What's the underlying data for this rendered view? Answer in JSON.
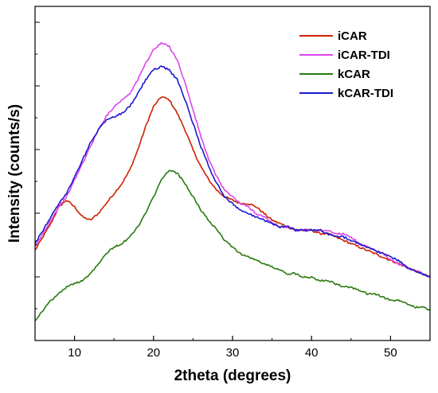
{
  "chart_data": {
    "type": "line",
    "title": "",
    "xlabel": "2theta (degrees)",
    "ylabel": "Intensity (counts/s)",
    "xlim": [
      5,
      55
    ],
    "ylim": [
      0,
      1
    ],
    "x_ticks": [
      "10",
      "20",
      "30",
      "40",
      "50"
    ],
    "y_tick_labels_shown": false,
    "grid": false,
    "legend_position": "top-right",
    "series": [
      {
        "name": "iCAR",
        "color": "#cc2200",
        "points": [
          [
            5,
            0.27
          ],
          [
            6,
            0.31
          ],
          [
            7,
            0.35
          ],
          [
            8,
            0.4
          ],
          [
            9,
            0.42
          ],
          [
            10,
            0.4
          ],
          [
            11,
            0.37
          ],
          [
            12,
            0.36
          ],
          [
            13,
            0.38
          ],
          [
            14,
            0.41
          ],
          [
            15,
            0.44
          ],
          [
            16,
            0.47
          ],
          [
            17,
            0.51
          ],
          [
            18,
            0.57
          ],
          [
            19,
            0.64
          ],
          [
            20,
            0.7
          ],
          [
            21,
            0.73
          ],
          [
            22,
            0.72
          ],
          [
            23,
            0.68
          ],
          [
            24,
            0.63
          ],
          [
            25,
            0.57
          ],
          [
            26,
            0.52
          ],
          [
            27,
            0.48
          ],
          [
            28,
            0.45
          ],
          [
            29,
            0.43
          ],
          [
            30,
            0.42
          ],
          [
            31,
            0.41
          ],
          [
            32,
            0.41
          ],
          [
            33,
            0.4
          ],
          [
            34,
            0.38
          ],
          [
            35,
            0.36
          ],
          [
            36,
            0.35
          ],
          [
            37,
            0.34
          ],
          [
            38,
            0.33
          ],
          [
            39,
            0.33
          ],
          [
            40,
            0.33
          ],
          [
            41,
            0.32
          ],
          [
            42,
            0.32
          ],
          [
            43,
            0.31
          ],
          [
            44,
            0.3
          ],
          [
            45,
            0.29
          ],
          [
            46,
            0.28
          ],
          [
            47,
            0.27
          ],
          [
            48,
            0.26
          ],
          [
            49,
            0.25
          ],
          [
            50,
            0.24
          ],
          [
            51,
            0.23
          ],
          [
            52,
            0.22
          ],
          [
            53,
            0.21
          ],
          [
            54,
            0.2
          ],
          [
            55,
            0.19
          ]
        ]
      },
      {
        "name": "iCAR-TDI",
        "color": "#dd44ee",
        "points": [
          [
            5,
            0.28
          ],
          [
            6,
            0.32
          ],
          [
            7,
            0.36
          ],
          [
            8,
            0.4
          ],
          [
            9,
            0.43
          ],
          [
            10,
            0.48
          ],
          [
            11,
            0.53
          ],
          [
            12,
            0.58
          ],
          [
            13,
            0.63
          ],
          [
            14,
            0.67
          ],
          [
            15,
            0.7
          ],
          [
            16,
            0.72
          ],
          [
            17,
            0.74
          ],
          [
            18,
            0.78
          ],
          [
            19,
            0.83
          ],
          [
            20,
            0.87
          ],
          [
            21,
            0.89
          ],
          [
            22,
            0.88
          ],
          [
            23,
            0.84
          ],
          [
            24,
            0.77
          ],
          [
            25,
            0.69
          ],
          [
            26,
            0.61
          ],
          [
            27,
            0.54
          ],
          [
            28,
            0.49
          ],
          [
            29,
            0.45
          ],
          [
            30,
            0.43
          ],
          [
            31,
            0.41
          ],
          [
            32,
            0.4
          ],
          [
            33,
            0.38
          ],
          [
            34,
            0.37
          ],
          [
            35,
            0.35
          ],
          [
            36,
            0.34
          ],
          [
            37,
            0.34
          ],
          [
            38,
            0.33
          ],
          [
            39,
            0.33
          ],
          [
            40,
            0.33
          ],
          [
            41,
            0.33
          ],
          [
            42,
            0.33
          ],
          [
            43,
            0.32
          ],
          [
            44,
            0.32
          ],
          [
            45,
            0.31
          ],
          [
            46,
            0.29
          ],
          [
            47,
            0.28
          ],
          [
            48,
            0.27
          ],
          [
            49,
            0.26
          ],
          [
            50,
            0.24
          ],
          [
            51,
            0.23
          ],
          [
            52,
            0.22
          ],
          [
            53,
            0.21
          ],
          [
            54,
            0.2
          ],
          [
            55,
            0.19
          ]
        ]
      },
      {
        "name": "kCAR",
        "color": "#2a7a10",
        "points": [
          [
            5,
            0.06
          ],
          [
            6,
            0.09
          ],
          [
            7,
            0.12
          ],
          [
            8,
            0.14
          ],
          [
            9,
            0.16
          ],
          [
            10,
            0.17
          ],
          [
            11,
            0.18
          ],
          [
            12,
            0.2
          ],
          [
            13,
            0.23
          ],
          [
            14,
            0.26
          ],
          [
            15,
            0.28
          ],
          [
            16,
            0.29
          ],
          [
            17,
            0.31
          ],
          [
            18,
            0.34
          ],
          [
            19,
            0.38
          ],
          [
            20,
            0.43
          ],
          [
            21,
            0.48
          ],
          [
            22,
            0.51
          ],
          [
            23,
            0.5
          ],
          [
            24,
            0.47
          ],
          [
            25,
            0.43
          ],
          [
            26,
            0.39
          ],
          [
            27,
            0.36
          ],
          [
            28,
            0.33
          ],
          [
            29,
            0.3
          ],
          [
            30,
            0.28
          ],
          [
            31,
            0.26
          ],
          [
            32,
            0.25
          ],
          [
            33,
            0.24
          ],
          [
            34,
            0.23
          ],
          [
            35,
            0.22
          ],
          [
            36,
            0.21
          ],
          [
            37,
            0.2
          ],
          [
            38,
            0.2
          ],
          [
            39,
            0.19
          ],
          [
            40,
            0.19
          ],
          [
            41,
            0.18
          ],
          [
            42,
            0.18
          ],
          [
            43,
            0.17
          ],
          [
            44,
            0.16
          ],
          [
            45,
            0.16
          ],
          [
            46,
            0.15
          ],
          [
            47,
            0.14
          ],
          [
            48,
            0.14
          ],
          [
            49,
            0.13
          ],
          [
            50,
            0.12
          ],
          [
            51,
            0.12
          ],
          [
            52,
            0.11
          ],
          [
            53,
            0.1
          ],
          [
            54,
            0.1
          ],
          [
            55,
            0.09
          ]
        ]
      },
      {
        "name": "kCAR-TDI",
        "color": "#1a1acc",
        "points": [
          [
            5,
            0.29
          ],
          [
            6,
            0.33
          ],
          [
            7,
            0.37
          ],
          [
            8,
            0.41
          ],
          [
            9,
            0.44
          ],
          [
            10,
            0.49
          ],
          [
            11,
            0.54
          ],
          [
            12,
            0.59
          ],
          [
            13,
            0.63
          ],
          [
            14,
            0.66
          ],
          [
            15,
            0.67
          ],
          [
            16,
            0.68
          ],
          [
            17,
            0.7
          ],
          [
            18,
            0.74
          ],
          [
            19,
            0.78
          ],
          [
            20,
            0.81
          ],
          [
            21,
            0.82
          ],
          [
            22,
            0.81
          ],
          [
            23,
            0.78
          ],
          [
            24,
            0.72
          ],
          [
            25,
            0.65
          ],
          [
            26,
            0.58
          ],
          [
            27,
            0.52
          ],
          [
            28,
            0.47
          ],
          [
            29,
            0.43
          ],
          [
            30,
            0.41
          ],
          [
            31,
            0.39
          ],
          [
            32,
            0.38
          ],
          [
            33,
            0.37
          ],
          [
            34,
            0.36
          ],
          [
            35,
            0.35
          ],
          [
            36,
            0.34
          ],
          [
            37,
            0.34
          ],
          [
            38,
            0.33
          ],
          [
            39,
            0.33
          ],
          [
            40,
            0.33
          ],
          [
            41,
            0.33
          ],
          [
            42,
            0.32
          ],
          [
            43,
            0.31
          ],
          [
            44,
            0.31
          ],
          [
            45,
            0.3
          ],
          [
            46,
            0.29
          ],
          [
            47,
            0.28
          ],
          [
            48,
            0.27
          ],
          [
            49,
            0.26
          ],
          [
            50,
            0.25
          ],
          [
            51,
            0.24
          ],
          [
            52,
            0.22
          ],
          [
            53,
            0.21
          ],
          [
            54,
            0.2
          ],
          [
            55,
            0.19
          ]
        ]
      }
    ]
  }
}
